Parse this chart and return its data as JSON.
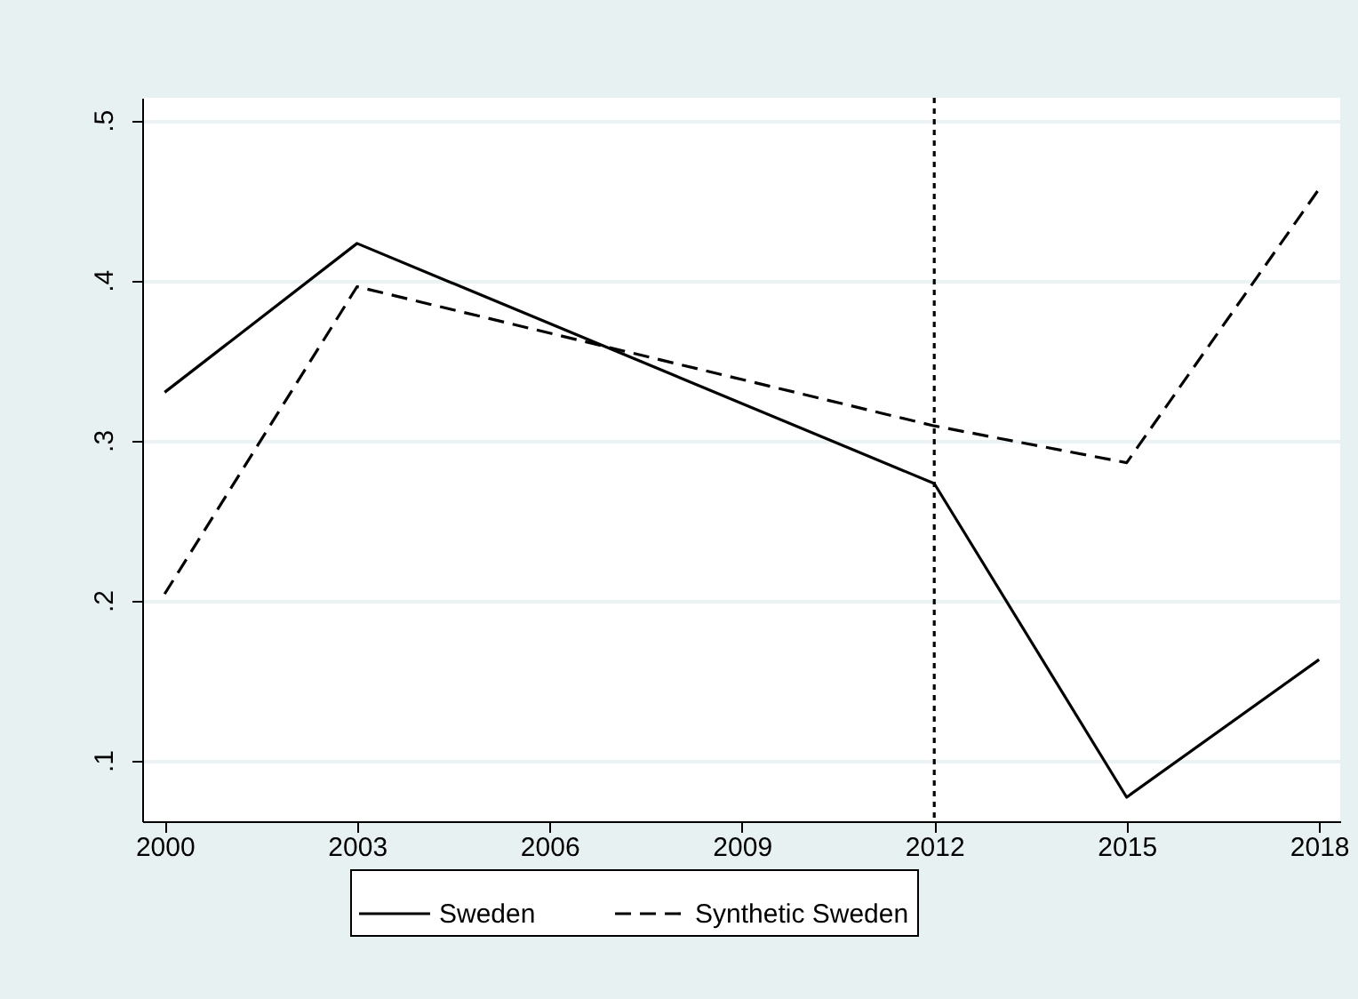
{
  "chart_data": {
    "type": "line",
    "series": [
      {
        "name": "Sweden",
        "color": "#000000",
        "line_style": "solid",
        "x": [
          2000,
          2003,
          2012,
          2015,
          2018
        ],
        "values": [
          0.33,
          0.423,
          0.273,
          0.077,
          0.163
        ]
      },
      {
        "name": "Synthetic Sweden",
        "color": "#000000",
        "line_style": "dashed",
        "x": [
          2000,
          2003,
          2012,
          2015,
          2018
        ],
        "values": [
          0.204,
          0.396,
          0.309,
          0.286,
          0.457
        ]
      }
    ],
    "xlim": [
      1999.65,
      2018.33
    ],
    "xticks": [
      2000,
      2003,
      2006,
      2009,
      2012,
      2015,
      2018
    ],
    "ylim": [
      0.062,
      0.514
    ],
    "yticks": [
      {
        "value": 0.1,
        "label": ".1"
      },
      {
        "value": 0.2,
        "label": ".2"
      },
      {
        "value": 0.3,
        "label": ".3"
      },
      {
        "value": 0.4,
        "label": ".4"
      },
      {
        "value": 0.5,
        "label": ".5"
      }
    ],
    "ref_lines": [
      {
        "axis": "x",
        "value": 2012,
        "color": "#000000",
        "line_style": "dotted"
      }
    ],
    "grid": "y",
    "legend": "bottom",
    "marker": "none"
  }
}
